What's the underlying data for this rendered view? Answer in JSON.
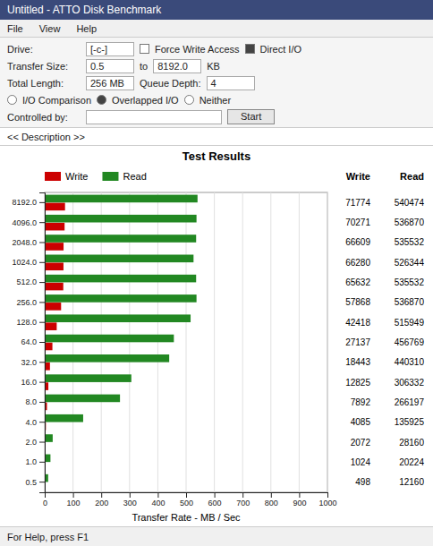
{
  "chart_data": {
    "type": "bar",
    "orientation": "horizontal",
    "title": "Test Results",
    "x_label": "Transfer Rate - MB / Sec",
    "categories": [
      "0.5",
      "1.0",
      "2.0",
      "4.0",
      "8.0",
      "16.0",
      "32.0",
      "64.0",
      "128.0",
      "256.0",
      "512.0",
      "1024.0",
      "2048.0",
      "4096.0",
      "8192.0"
    ],
    "series": [
      {
        "name": "Write",
        "color": "#cc0000",
        "values": [
          0.498,
          1.024,
          2.072,
          4.085,
          7.892,
          12.825,
          18.443,
          27.137,
          42.418,
          57.868,
          65.632,
          66.28,
          66.609,
          70.271,
          71.774
        ],
        "value_labels": [
          "498",
          "1024",
          "2072",
          "4085",
          "7892",
          "12825",
          "18443",
          "27137",
          "42418",
          "57868",
          "65632",
          "66280",
          "66609",
          "70271",
          "71774"
        ]
      },
      {
        "name": "Read",
        "color": "#228822",
        "values": [
          12.16,
          20.224,
          28.16,
          135.925,
          266.197,
          306.332,
          440.31,
          456.769,
          515.949,
          536.87,
          535.532,
          526.344,
          535.532,
          536.87,
          540.474
        ],
        "value_labels": [
          "12160",
          "20224",
          "28160",
          "135925",
          "266197",
          "306332",
          "440310",
          "456769",
          "515949",
          "536870",
          "535532",
          "526344",
          "535532",
          "536870",
          "540474"
        ]
      }
    ],
    "data_labels": true,
    "xlim": [
      0,
      1000
    ],
    "xticks": [
      0,
      100,
      200,
      300,
      400,
      500,
      600,
      700,
      800,
      900,
      1000
    ],
    "grid": true,
    "legend": "top",
    "annotations": [
      "Untitled - ATTO Disk Benchmark",
      "File",
      "View",
      "Help",
      "Drive:",
      "[-c-]",
      "Force Write Access",
      "Direct I/O",
      "I/O Comparison",
      "Overlapped I/O",
      "Neither",
      "Transfer Size:",
      "0.5",
      "to",
      "8192.0",
      "KB",
      "Queue Depth:",
      "4",
      "Total Length:",
      "256 MB",
      "Controlled by:",
      "Start",
      "<< Description >>",
      "For Help, press F1"
    ]
  }
}
